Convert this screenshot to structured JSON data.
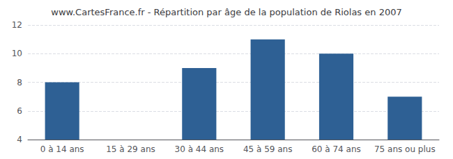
{
  "chart_data": {
    "type": "bar",
    "title": "www.CartesFrance.fr - Répartition par âge de la population de Riolas en 2007",
    "categories": [
      "0 à 14 ans",
      "15 à 29 ans",
      "30 à 44 ans",
      "45 à 59 ans",
      "60 à 74 ans",
      "75 ans ou plus"
    ],
    "values": [
      8,
      4,
      9,
      11,
      10,
      7
    ],
    "color": "#2e6094",
    "ylim": [
      4,
      12
    ],
    "yticks": [
      4,
      6,
      8,
      10,
      12
    ],
    "grid": true
  }
}
